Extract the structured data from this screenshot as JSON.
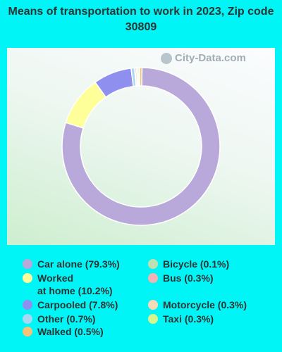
{
  "chart_data": {
    "type": "pie",
    "title": "Means of transportation to work in 2023, Zip code 30809",
    "donut": true,
    "slices": [
      {
        "label": "Car alone",
        "value": 79.3,
        "display": "Car alone (79.3%)",
        "color": "#b9a8da"
      },
      {
        "label": "Worked at home",
        "value": 10.2,
        "display": "Worked\nat home (10.2%)",
        "color": "#ffff99"
      },
      {
        "label": "Carpooled",
        "value": 7.8,
        "display": "Carpooled (7.8%)",
        "color": "#8f8ff0"
      },
      {
        "label": "Other",
        "value": 0.7,
        "display": "Other (0.7%)",
        "color": "#a9d8f2"
      },
      {
        "label": "Bicycle",
        "value": 0.1,
        "display": "Bicycle (0.1%)",
        "color": "#bfe0b0"
      },
      {
        "label": "Bus",
        "value": 0.3,
        "display": "Bus (0.3%)",
        "color": "#f2b4b4"
      },
      {
        "label": "Motorcycle",
        "value": 0.3,
        "display": "Motorcycle (0.3%)",
        "color": "#f8d9b8"
      },
      {
        "label": "Taxi",
        "value": 0.3,
        "display": "Taxi (0.3%)",
        "color": "#d4f590"
      },
      {
        "label": "Walked",
        "value": 0.5,
        "display": "Walked (0.5%)",
        "color": "#f5c27a"
      }
    ],
    "legend_position": "bottom"
  },
  "watermark": "City-Data.com"
}
